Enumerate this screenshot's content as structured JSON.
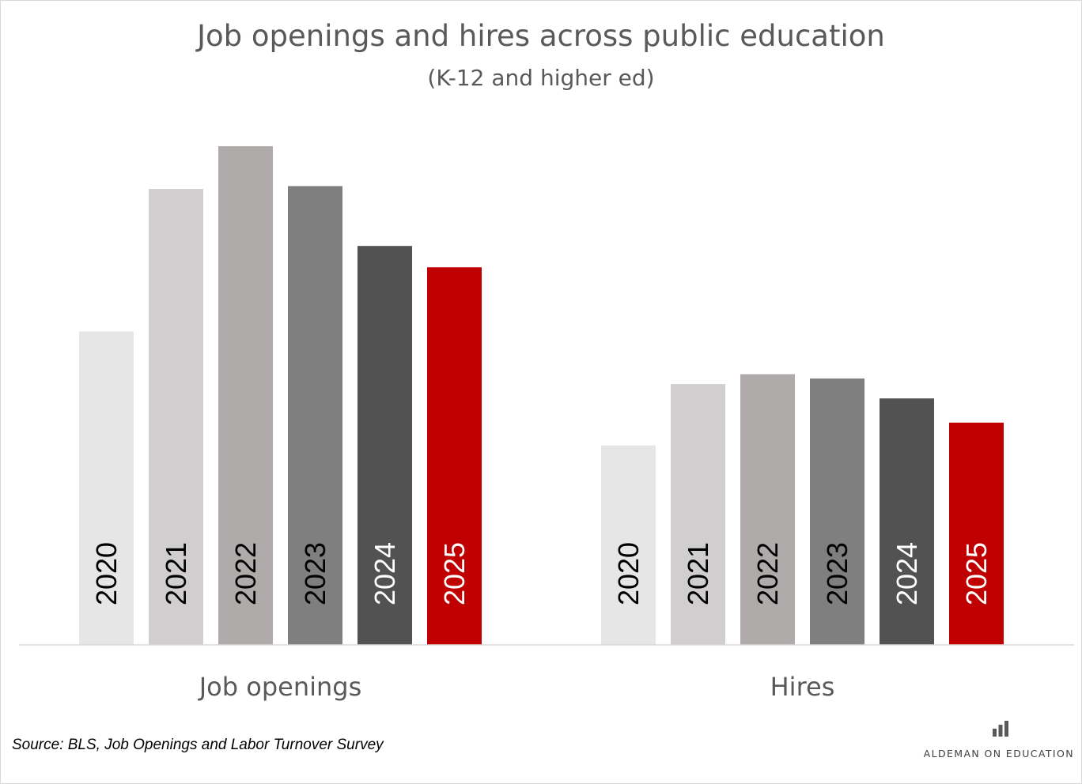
{
  "chart_data": {
    "type": "bar",
    "title": "Job openings and hires across public education",
    "subtitle": "(K-12 and higher ed)",
    "categories": [
      "Job openings",
      "Hires"
    ],
    "series": [
      {
        "name": "2020",
        "values": [
          2.2,
          1.4
        ],
        "color": "#e6e6e6",
        "label_color": "#000000"
      },
      {
        "name": "2021",
        "values": [
          3.2,
          1.83
        ],
        "color": "#d0cece",
        "label_color": "#000000"
      },
      {
        "name": "2022",
        "values": [
          3.5,
          1.9
        ],
        "color": "#afabab",
        "label_color": "#000000"
      },
      {
        "name": "2023",
        "values": [
          3.22,
          1.87
        ],
        "color": "#7f7f7f",
        "label_color": "#000000"
      },
      {
        "name": "2024",
        "values": [
          2.8,
          1.73
        ],
        "color": "#525252",
        "label_color": "#ffffff"
      },
      {
        "name": "2025",
        "values": [
          2.65,
          1.56
        ],
        "color": "#c00000",
        "label_color": "#ffffff"
      }
    ],
    "ylim": [
      0,
      3.5
    ],
    "grid": false,
    "legend": "none"
  },
  "source": "Source: BLS, Job Openings and Labor Turnover Survey",
  "brand": {
    "name": "ALDEMAN ON EDUCATION",
    "icon": "bar-chart-icon"
  }
}
